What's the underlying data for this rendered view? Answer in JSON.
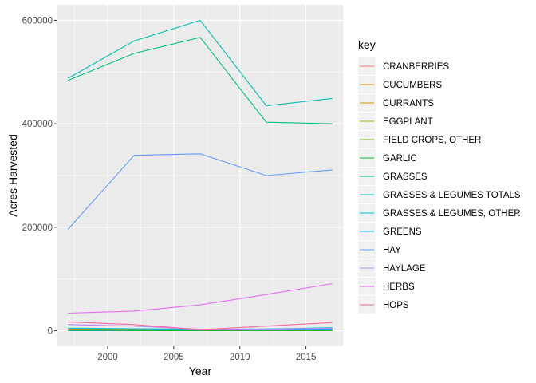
{
  "chart_data": {
    "type": "line",
    "title": "",
    "xlabel": "Year",
    "ylabel": "Acres Harvested",
    "xlim": [
      1996.2,
      2017.8
    ],
    "ylim": [
      -30000,
      630000
    ],
    "x_ticks": [
      2000,
      2005,
      2010,
      2015
    ],
    "x_tick_labels": [
      "2000",
      "2005",
      "2010",
      "2015"
    ],
    "y_ticks": [
      0,
      200000,
      400000,
      600000
    ],
    "y_tick_labels": [
      "0",
      "200000",
      "400000",
      "600000"
    ],
    "x": [
      1997,
      2002,
      2007,
      2012,
      2017
    ],
    "grid": true,
    "legend": {
      "title": "key",
      "position": "right"
    },
    "series": [
      {
        "name": "CRANBERRIES",
        "color": "#F8766D",
        "values": [
          1000,
          1200,
          1500,
          1600,
          1700
        ]
      },
      {
        "name": "CUCUMBERS",
        "color": "#E58700",
        "values": [
          3500,
          3000,
          2500,
          2200,
          2000
        ]
      },
      {
        "name": "CURRANTS",
        "color": "#C99800",
        "values": [
          50,
          60,
          80,
          100,
          120
        ]
      },
      {
        "name": "EGGPLANT",
        "color": "#A3A500",
        "values": [
          400,
          350,
          380,
          420,
          450
        ]
      },
      {
        "name": "FIELD CROPS, OTHER",
        "color": "#6BB100",
        "values": [
          2000,
          2500,
          1000,
          1200,
          900
        ]
      },
      {
        "name": "GARLIC",
        "color": "#00BA38",
        "values": [
          300,
          350,
          400,
          500,
          600
        ]
      },
      {
        "name": "GRASSES",
        "color": "#00BF7D",
        "values": [
          484000,
          536000,
          567000,
          403000,
          400000
        ]
      },
      {
        "name": "GRASSES & LEGUMES TOTALS",
        "color": "#00C0AF",
        "values": [
          488000,
          560000,
          600000,
          435000,
          449000
        ]
      },
      {
        "name": "GRASSES & LEGUMES, OTHER",
        "color": "#00BCD8",
        "values": [
          5000,
          4000,
          3000,
          3500,
          6000
        ]
      },
      {
        "name": "GREENS",
        "color": "#00B0F6",
        "values": [
          800,
          1500,
          2000,
          2500,
          3000
        ]
      },
      {
        "name": "HAY",
        "color": "#619CFF",
        "values": [
          196000,
          339000,
          342000,
          300000,
          311000
        ]
      },
      {
        "name": "HAYLAGE",
        "color": "#B983FF",
        "values": [
          12000,
          9000,
          3000,
          3000,
          5000
        ]
      },
      {
        "name": "HERBS",
        "color": "#E76BF3",
        "values": [
          34000,
          38000,
          50000,
          70000,
          91000
        ]
      },
      {
        "name": "HOPS",
        "color": "#FF67A4",
        "values": [
          17000,
          12000,
          2000,
          9000,
          16000
        ]
      }
    ]
  }
}
